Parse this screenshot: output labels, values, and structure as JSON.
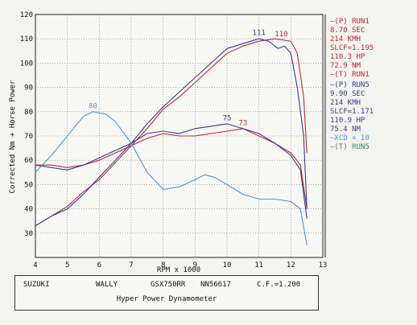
{
  "chart_data": {
    "type": "line",
    "ylabel": "Corrected Nm + Horse Power",
    "xlabel": "RPM x 1000",
    "xlim": [
      4,
      13
    ],
    "ylim": [
      20,
      120
    ],
    "x_ticks": [
      "4",
      "5",
      "6",
      "7",
      "8",
      "9",
      "10",
      "11",
      "12",
      "13"
    ],
    "y_ticks": [
      "30",
      "40",
      "50",
      "60",
      "70",
      "80",
      "90",
      "100",
      "110",
      "120"
    ],
    "grid": true,
    "series": [
      {
        "color": "#c0243a",
        "points": [
          [
            4,
            33
          ],
          [
            4.5,
            37
          ],
          [
            5,
            41
          ],
          [
            5.5,
            47
          ],
          [
            6,
            52
          ],
          [
            6.5,
            59
          ],
          [
            7,
            66
          ],
          [
            7.5,
            73
          ],
          [
            8,
            81
          ],
          [
            8.5,
            86
          ],
          [
            9,
            92
          ],
          [
            9.5,
            98
          ],
          [
            10,
            104
          ],
          [
            10.5,
            107
          ],
          [
            11,
            109
          ],
          [
            11.5,
            110
          ],
          [
            12,
            109
          ],
          [
            12.2,
            104
          ],
          [
            12.4,
            86
          ],
          [
            12.5,
            63
          ]
        ]
      },
      {
        "color": "#c0243a",
        "points": [
          [
            4,
            58
          ],
          [
            4.5,
            58
          ],
          [
            5,
            57
          ],
          [
            5.5,
            58
          ],
          [
            6,
            60
          ],
          [
            6.5,
            63
          ],
          [
            7,
            66
          ],
          [
            7.5,
            69
          ],
          [
            8,
            71
          ],
          [
            8.5,
            70
          ],
          [
            9,
            70
          ],
          [
            9.5,
            71
          ],
          [
            10,
            72
          ],
          [
            10.5,
            73
          ],
          [
            11,
            70
          ],
          [
            11.5,
            67
          ],
          [
            12,
            63
          ],
          [
            12.3,
            58
          ],
          [
            12.5,
            40
          ]
        ]
      },
      {
        "color": "#3a3a8c",
        "points": [
          [
            4,
            33
          ],
          [
            4.5,
            37
          ],
          [
            5,
            40
          ],
          [
            5.5,
            46
          ],
          [
            6,
            53
          ],
          [
            6.5,
            60
          ],
          [
            7,
            67
          ],
          [
            7.5,
            75
          ],
          [
            8,
            82
          ],
          [
            8.5,
            88
          ],
          [
            9,
            94
          ],
          [
            9.5,
            100
          ],
          [
            10,
            106
          ],
          [
            10.5,
            108
          ],
          [
            11,
            110
          ],
          [
            11.3,
            109
          ],
          [
            11.6,
            106
          ],
          [
            11.8,
            107
          ],
          [
            12,
            104
          ],
          [
            12.2,
            90
          ],
          [
            12.4,
            70
          ],
          [
            12.5,
            40
          ]
        ]
      },
      {
        "color": "#3a3a8c",
        "points": [
          [
            4,
            58
          ],
          [
            4.5,
            57
          ],
          [
            5,
            56
          ],
          [
            5.5,
            58
          ],
          [
            6,
            61
          ],
          [
            6.5,
            64
          ],
          [
            7,
            67
          ],
          [
            7.5,
            71
          ],
          [
            8,
            72
          ],
          [
            8.5,
            71
          ],
          [
            9,
            73
          ],
          [
            9.5,
            74
          ],
          [
            10,
            75
          ],
          [
            10.5,
            73
          ],
          [
            11,
            71
          ],
          [
            11.5,
            67
          ],
          [
            12,
            62
          ],
          [
            12.3,
            56
          ],
          [
            12.5,
            36
          ]
        ]
      },
      {
        "color": "#4a9ad4",
        "points": [
          [
            4,
            55
          ],
          [
            4.5,
            62
          ],
          [
            5,
            70
          ],
          [
            5.5,
            78
          ],
          [
            5.8,
            80
          ],
          [
            6.2,
            79
          ],
          [
            6.5,
            76
          ],
          [
            7,
            67
          ],
          [
            7.5,
            55
          ],
          [
            8,
            48
          ],
          [
            8.5,
            49
          ],
          [
            9,
            52
          ],
          [
            9.3,
            54
          ],
          [
            9.6,
            53
          ],
          [
            10,
            50
          ],
          [
            10.5,
            46
          ],
          [
            11,
            44
          ],
          [
            11.5,
            44
          ],
          [
            12,
            43
          ],
          [
            12.3,
            40
          ],
          [
            12.5,
            25
          ]
        ]
      }
    ],
    "annotations": [
      {
        "text": "80",
        "x": 5.8,
        "y": 80.5,
        "color": "#4a9ad4"
      },
      {
        "text": "75",
        "x": 10,
        "y": 75.5,
        "color": "#3a3a8c"
      },
      {
        "text": "73",
        "x": 10.5,
        "y": 73.5,
        "color": "#c0243a"
      },
      {
        "text": "111",
        "x": 11,
        "y": 110.5,
        "color": "#3a3a8c"
      },
      {
        "text": "110",
        "x": 11.7,
        "y": 110,
        "color": "#c0243a"
      }
    ],
    "legend": {
      "placement": "right",
      "run1": {
        "color": "#c0243a",
        "lines": [
          "—(P)  RUN1",
          "8.70 SEC",
          "214 KMH",
          "SLCF=1.195",
          "110.3 HP",
          "72.9 NM",
          "—(T)  RUN1"
        ]
      },
      "run5": {
        "color": "#3a3a8c",
        "lines": [
          "—(P)  RUN5",
          "9.90 SEC",
          "214 KMH",
          "SLCF=1.171",
          "110.9 HP",
          "75.4 NM",
          "—XCD × 10",
          "—(T)  RUN5"
        ],
        "xcd_color": "#4a9ad4",
        "t_color": "#3a8c6a"
      }
    }
  },
  "footer": {
    "make": "SUZUKI",
    "rider": "WALLY",
    "model": "GSX750RR",
    "serial": "NN56617",
    "cf": "C.F.=1.200",
    "dyno": "Hyper Power Dynamometer"
  }
}
